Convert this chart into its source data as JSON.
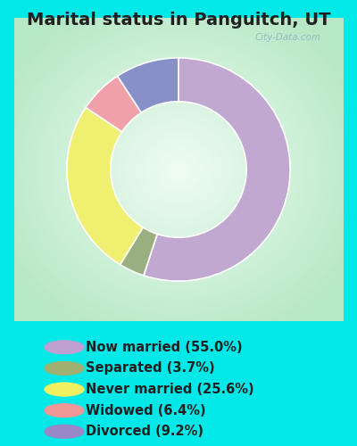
{
  "title": "Marital status in Panguitch, UT",
  "slices": [
    {
      "label": "Now married (55.0%)",
      "value": 55.0,
      "color": "#c0a8d0"
    },
    {
      "label": "Separated (3.7%)",
      "value": 3.7,
      "color": "#9aaf80"
    },
    {
      "label": "Never married (25.6%)",
      "value": 25.6,
      "color": "#f0f070"
    },
    {
      "label": "Widowed (6.4%)",
      "value": 6.4,
      "color": "#f0a0a8"
    },
    {
      "label": "Divorced (9.2%)",
      "value": 9.2,
      "color": "#8890c8"
    }
  ],
  "legend_colors": [
    "#c0a0d0",
    "#a0b070",
    "#f0f060",
    "#f09898",
    "#9888c8"
  ],
  "background_outer": "#00e8e8",
  "background_chart_edge": "#b8e8c8",
  "background_chart_center": "#eafcf0",
  "title_color": "#202020",
  "title_fontsize": 14,
  "legend_fontsize": 10.5,
  "watermark": "City-Data.com",
  "donut_width": 0.36,
  "start_angle": 90,
  "fig_width": 4.0,
  "fig_height": 5.0
}
